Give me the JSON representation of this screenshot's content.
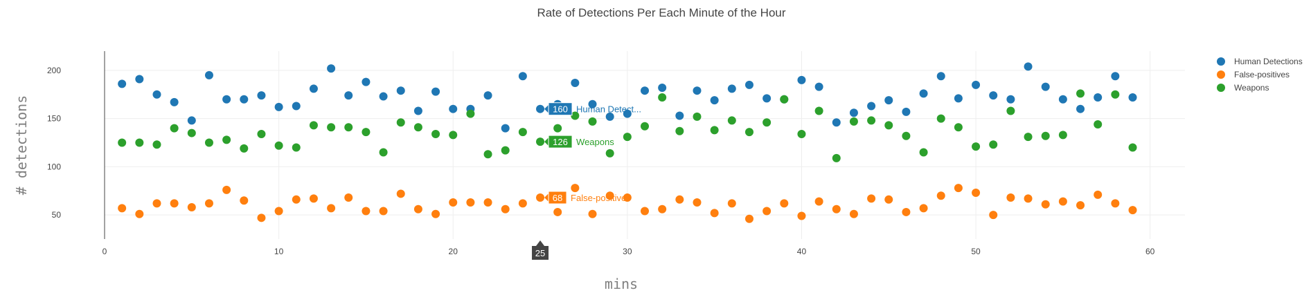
{
  "chart_data": {
    "type": "scatter",
    "title": "Rate of Detections Per Each Minute of the Hour",
    "xlabel": "mins",
    "ylabel": "# detections",
    "xlim": [
      0,
      62
    ],
    "ylim": [
      25,
      220
    ],
    "x_ticks": [
      0,
      10,
      20,
      30,
      40,
      50,
      60
    ],
    "y_ticks": [
      50,
      100,
      150,
      200
    ],
    "grid": true,
    "legend_position": "top-right",
    "x": [
      1,
      2,
      3,
      4,
      5,
      6,
      7,
      8,
      9,
      10,
      11,
      12,
      13,
      14,
      15,
      16,
      17,
      18,
      19,
      20,
      21,
      22,
      23,
      24,
      25,
      26,
      27,
      28,
      29,
      30,
      31,
      32,
      33,
      34,
      35,
      36,
      37,
      38,
      39,
      40,
      41,
      42,
      43,
      44,
      45,
      46,
      47,
      48,
      49,
      50,
      51,
      52,
      53,
      54,
      55,
      56,
      57,
      58,
      59
    ],
    "series": [
      {
        "name": "Human Detections",
        "color": "#1f77b4",
        "values": [
          186,
          191,
          175,
          167,
          148,
          195,
          170,
          170,
          174,
          162,
          163,
          181,
          202,
          174,
          188,
          173,
          179,
          158,
          178,
          160,
          160,
          174,
          140,
          194,
          160,
          165,
          187,
          165,
          152,
          155,
          179,
          182,
          153,
          179,
          169,
          181,
          185,
          171,
          170,
          190,
          183,
          146,
          156,
          163,
          169,
          157,
          176,
          194,
          171,
          185,
          174,
          170,
          204,
          183,
          170,
          160,
          172,
          194,
          172
        ]
      },
      {
        "name": "False-positives",
        "color": "#ff7f0e",
        "values": [
          57,
          51,
          62,
          62,
          58,
          62,
          76,
          65,
          47,
          54,
          66,
          67,
          57,
          68,
          54,
          54,
          72,
          56,
          51,
          63,
          63,
          63,
          56,
          62,
          68,
          53,
          78,
          51,
          70,
          68,
          54,
          56,
          66,
          63,
          52,
          62,
          46,
          54,
          62,
          49,
          64,
          56,
          51,
          67,
          66,
          53,
          57,
          70,
          78,
          73,
          50,
          68,
          67,
          61,
          64,
          60,
          71,
          62,
          55
        ]
      },
      {
        "name": "Weapons",
        "color": "#2ca02c",
        "values": [
          125,
          125,
          123,
          140,
          135,
          125,
          128,
          119,
          134,
          122,
          120,
          143,
          141,
          141,
          136,
          115,
          146,
          141,
          134,
          133,
          155,
          113,
          117,
          136,
          126,
          140,
          153,
          147,
          114,
          131,
          142,
          172,
          137,
          152,
          138,
          148,
          136,
          146,
          170,
          134,
          158,
          109,
          147,
          148,
          143,
          132,
          115,
          150,
          141,
          121,
          123,
          158,
          131,
          132,
          133,
          176,
          144,
          175,
          120
        ]
      }
    ],
    "hover": {
      "x_label": "25",
      "items": [
        {
          "value": "160",
          "name": "Human Detect...",
          "color": "#1f77b4"
        },
        {
          "value": "126",
          "name": "Weapons",
          "color": "#2ca02c"
        },
        {
          "value": "68",
          "name": "False-positives",
          "color": "#ff7f0e"
        }
      ]
    }
  }
}
